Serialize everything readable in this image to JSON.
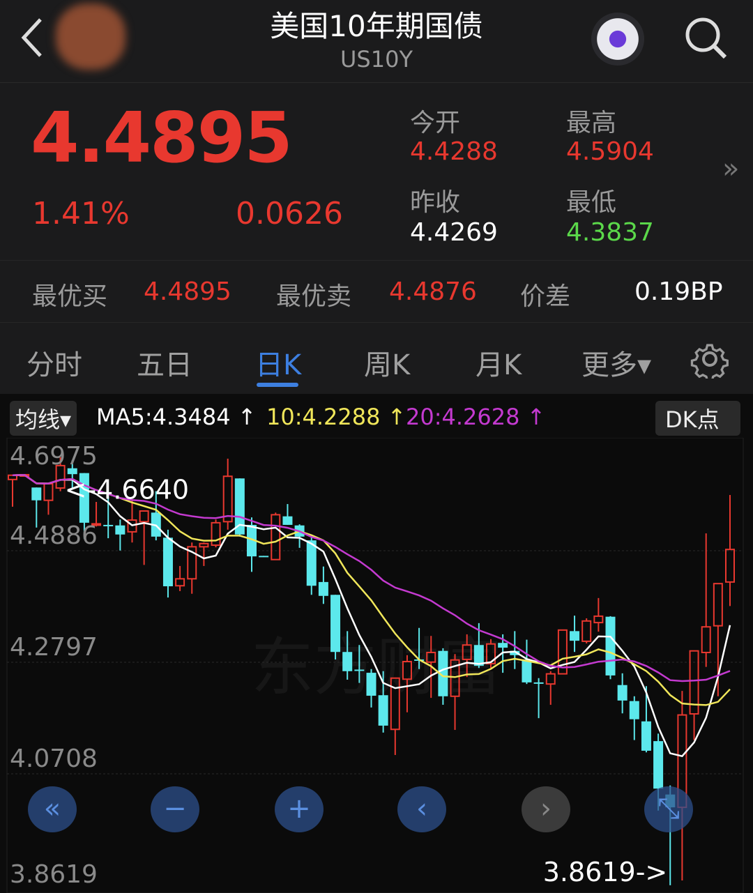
{
  "header": {
    "title": "美国10年期国债",
    "code": "US10Y",
    "back_icon": "chevron-left-icon",
    "search_icon": "search-icon",
    "mascot_icon": "robot-mascot-icon"
  },
  "quote": {
    "price": "4.4895",
    "change_pct": "1.41%",
    "change": "0.0626",
    "open_label": "今开",
    "open": "4.4288",
    "high_label": "最高",
    "high": "4.5904",
    "prev_close_label": "昨收",
    "prev_close": "4.4269",
    "low_label": "最低",
    "low": "4.3837",
    "more_icon": "double-chevron-right-icon"
  },
  "bidask": {
    "bid_label": "最优买",
    "bid": "4.4895",
    "ask_label": "最优卖",
    "ask": "4.4876",
    "spread_label": "价差",
    "spread": "0.19BP"
  },
  "tabs": [
    {
      "label": "分时"
    },
    {
      "label": "五日"
    },
    {
      "label": "日K",
      "active": true
    },
    {
      "label": "周K"
    },
    {
      "label": "月K"
    },
    {
      "label": "更多▾"
    }
  ],
  "ma_bar": {
    "selector": "均线▾",
    "ma5": "MA5:4.3484 ↑",
    "ma10": "10:4.2288 ↑",
    "ma20": "20:4.2628 ↑",
    "dk_button": "DK点"
  },
  "colors": {
    "up": "#e8382f",
    "down": "#5ce8ec",
    "ma5": "#ffffff",
    "ma10": "#f0e65a",
    "ma20": "#c43ad0",
    "active_tab": "#3d7fe0",
    "low": "#5bd84a"
  },
  "chart_data": {
    "type": "candlestick",
    "y_ticks": [
      "4.6975",
      "4.4886",
      "4.2797",
      "4.0708",
      "3.8619"
    ],
    "ylim": [
      3.8619,
      4.6975
    ],
    "max_label": "<-4.6640",
    "min_label": "3.8619->",
    "watermark": "东方财富",
    "ma_periods": [
      5,
      10,
      20
    ],
    "candles": [
      [
        4.622,
        4.63,
        4.571,
        4.63
      ],
      [
        4.629,
        4.632,
        4.628,
        4.631
      ],
      [
        4.607,
        4.607,
        4.532,
        4.583
      ],
      [
        4.583,
        4.614,
        4.556,
        4.614
      ],
      [
        4.606,
        4.664,
        4.6,
        4.648
      ],
      [
        4.643,
        4.658,
        4.606,
        4.632
      ],
      [
        4.634,
        4.634,
        4.511,
        4.541
      ],
      [
        4.538,
        4.58,
        4.534,
        4.539
      ],
      [
        4.537,
        4.59,
        4.512,
        4.536
      ],
      [
        4.536,
        4.547,
        4.489,
        4.519
      ],
      [
        4.524,
        4.583,
        4.504,
        4.546
      ],
      [
        4.543,
        4.563,
        4.462,
        4.563
      ],
      [
        4.56,
        4.6,
        4.508,
        4.515
      ],
      [
        4.513,
        4.528,
        4.401,
        4.422
      ],
      [
        4.423,
        4.46,
        4.413,
        4.436
      ],
      [
        4.436,
        4.504,
        4.408,
        4.496
      ],
      [
        4.496,
        4.504,
        4.46,
        4.502
      ],
      [
        4.499,
        4.547,
        4.495,
        4.541
      ],
      [
        4.543,
        4.661,
        4.528,
        4.628
      ],
      [
        4.624,
        4.624,
        4.515,
        4.519
      ],
      [
        4.537,
        4.551,
        4.449,
        4.478
      ],
      [
        4.479,
        4.479,
        4.477,
        4.478
      ],
      [
        4.472,
        4.56,
        4.472,
        4.556
      ],
      [
        4.553,
        4.576,
        4.537,
        4.537
      ],
      [
        4.536,
        4.538,
        4.494,
        4.515
      ],
      [
        4.508,
        4.515,
        4.406,
        4.423
      ],
      [
        4.43,
        4.459,
        4.389,
        4.404
      ],
      [
        4.406,
        4.406,
        4.285,
        4.299
      ],
      [
        4.299,
        4.338,
        4.247,
        4.263
      ],
      [
        4.266,
        4.312,
        4.241,
        4.265
      ],
      [
        4.26,
        4.267,
        4.195,
        4.217
      ],
      [
        4.218,
        4.263,
        4.148,
        4.161
      ],
      [
        4.154,
        4.25,
        4.106,
        4.25
      ],
      [
        4.248,
        4.293,
        4.186,
        4.281
      ],
      [
        4.285,
        4.344,
        4.267,
        4.284
      ],
      [
        4.28,
        4.329,
        4.213,
        4.298
      ],
      [
        4.301,
        4.306,
        4.2,
        4.216
      ],
      [
        4.216,
        4.295,
        4.153,
        4.284
      ],
      [
        4.285,
        4.332,
        4.252,
        4.312
      ],
      [
        4.312,
        4.353,
        4.269,
        4.273
      ],
      [
        4.277,
        4.323,
        4.269,
        4.314
      ],
      [
        4.316,
        4.332,
        4.26,
        4.307
      ],
      [
        4.301,
        4.338,
        4.267,
        4.293
      ],
      [
        4.285,
        4.322,
        4.239,
        4.242
      ],
      [
        4.242,
        4.25,
        4.175,
        4.241
      ],
      [
        4.239,
        4.263,
        4.2,
        4.258
      ],
      [
        4.258,
        4.34,
        4.257,
        4.34
      ],
      [
        4.338,
        4.367,
        4.299,
        4.32
      ],
      [
        4.319,
        4.362,
        4.315,
        4.357
      ],
      [
        4.354,
        4.4,
        4.337,
        4.366
      ],
      [
        4.365,
        4.366,
        4.248,
        4.255
      ],
      [
        4.237,
        4.259,
        4.184,
        4.208
      ],
      [
        4.207,
        4.216,
        4.134,
        4.173
      ],
      [
        4.169,
        4.235,
        4.111,
        4.114
      ],
      [
        4.132,
        4.146,
        4.002,
        4.043
      ],
      [
        4.032,
        4.049,
        3.862,
        4.008
      ],
      [
        4.008,
        4.226,
        3.871,
        4.181
      ],
      [
        4.183,
        4.301,
        4.134,
        4.301
      ],
      [
        4.298,
        4.521,
        4.271,
        4.346
      ],
      [
        4.348,
        4.427,
        4.216,
        4.427
      ],
      [
        4.43,
        4.593,
        4.385,
        4.491
      ]
    ]
  },
  "chart_controls": [
    {
      "icon": "double-chevron-left-icon",
      "glyph": "«"
    },
    {
      "icon": "zoom-out-icon",
      "glyph": "−"
    },
    {
      "icon": "zoom-in-icon",
      "glyph": "+"
    },
    {
      "icon": "chevron-left-icon",
      "glyph": "‹"
    },
    {
      "icon": "chevron-right-icon",
      "glyph": "›"
    },
    {
      "icon": "fullscreen-icon",
      "glyph": "⤡"
    }
  ]
}
